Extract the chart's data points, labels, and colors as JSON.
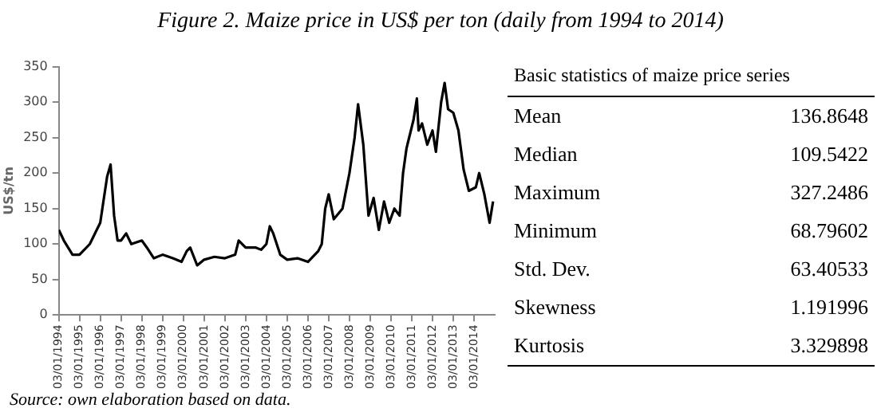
{
  "chart_data": [
    {
      "type": "line",
      "title": "Figure 2. Maize price in US$ per ton (daily from 1994 to 2014)",
      "ylabel": "US$/tn",
      "color": "#000000",
      "x": [
        "1994-01-03",
        "1994-04",
        "1994-09",
        "1995-01",
        "1995-07",
        "1996-01",
        "1996-05",
        "1996-07",
        "1996-09",
        "1996-11",
        "1997-01",
        "1997-04",
        "1997-07",
        "1998-01",
        "1998-04",
        "1998-08",
        "1999-01",
        "1999-07",
        "1999-12",
        "2000-03",
        "2000-05",
        "2000-09",
        "2001-01",
        "2001-07",
        "2002-01",
        "2002-07",
        "2002-09",
        "2003-01",
        "2003-07",
        "2003-10",
        "2004-01",
        "2004-03",
        "2004-05",
        "2004-09",
        "2005-01",
        "2005-07",
        "2006-01",
        "2006-07",
        "2006-09",
        "2006-11",
        "2007-01",
        "2007-04",
        "2007-09",
        "2008-01",
        "2008-04",
        "2008-06",
        "2008-09",
        "2008-12",
        "2009-03",
        "2009-06",
        "2009-09",
        "2009-12",
        "2010-03",
        "2010-06",
        "2010-08",
        "2010-10",
        "2011-02",
        "2011-04",
        "2011-05",
        "2011-07",
        "2011-10",
        "2012-01",
        "2012-03",
        "2012-06",
        "2012-08",
        "2012-10",
        "2013-01",
        "2013-04",
        "2013-07",
        "2013-10",
        "2014-02",
        "2014-04",
        "2014-07",
        "2014-10",
        "2014-12"
      ],
      "values": [
        120,
        105,
        85,
        85,
        100,
        130,
        195,
        212,
        140,
        105,
        105,
        115,
        100,
        105,
        95,
        80,
        85,
        80,
        75,
        90,
        95,
        70,
        78,
        82,
        80,
        85,
        105,
        95,
        95,
        92,
        100,
        125,
        115,
        85,
        78,
        80,
        75,
        90,
        100,
        150,
        170,
        135,
        150,
        200,
        250,
        297,
        240,
        140,
        165,
        120,
        160,
        130,
        150,
        140,
        200,
        235,
        275,
        305,
        260,
        270,
        240,
        260,
        230,
        300,
        327,
        290,
        285,
        260,
        205,
        175,
        180,
        200,
        170,
        130,
        160
      ],
      "xlim": [
        "1994-01-03",
        "2014-12-31"
      ],
      "xticks": [
        {
          "value": "1994-01-03",
          "label": "03/01/1994"
        },
        {
          "value": "1995-01-03",
          "label": "03/01/1995"
        },
        {
          "value": "1996-01-03",
          "label": "03/01/1996"
        },
        {
          "value": "1997-01-03",
          "label": "03/01/1997"
        },
        {
          "value": "1998-01-03",
          "label": "03/01/1998"
        },
        {
          "value": "1999-01-03",
          "label": "03/01/1999"
        },
        {
          "value": "2000-01-03",
          "label": "03/01/2000"
        },
        {
          "value": "2001-01-03",
          "label": "03/01/2001"
        },
        {
          "value": "2002-01-03",
          "label": "03/01/2002"
        },
        {
          "value": "2003-01-03",
          "label": "03/01/2003"
        },
        {
          "value": "2004-01-03",
          "label": "03/01/2004"
        },
        {
          "value": "2005-01-03",
          "label": "03/01/2005"
        },
        {
          "value": "2006-01-03",
          "label": "03/01/2006"
        },
        {
          "value": "2007-01-03",
          "label": "03/01/2007"
        },
        {
          "value": "2008-01-03",
          "label": "03/01/2008"
        },
        {
          "value": "2009-01-03",
          "label": "03/01/2009"
        },
        {
          "value": "2010-01-03",
          "label": "03/01/2010"
        },
        {
          "value": "2011-01-03",
          "label": "03/01/2011"
        },
        {
          "value": "2012-01-03",
          "label": "03/01/2012"
        },
        {
          "value": "2013-01-03",
          "label": "03/01/2013"
        },
        {
          "value": "2014-01-03",
          "label": "03/01/2014"
        }
      ],
      "ylim": [
        0,
        350
      ],
      "yticks": [
        0,
        50,
        100,
        150,
        200,
        250,
        300,
        350
      ],
      "grid": false,
      "legend": false,
      "marker": "none",
      "line_style": "solid",
      "annotations": [
        "Source: own elaboration based on data."
      ]
    },
    {
      "type": "other",
      "title": "Basic statistics of maize price series",
      "categories": [
        "Mean",
        "Median",
        "Maximum",
        "Minimum",
        "Std. Dev.",
        "Skewness",
        "Kurtosis"
      ],
      "values": [
        136.8648,
        109.5422,
        327.2486,
        68.79602,
        63.40533,
        1.191996,
        3.329898
      ],
      "data_labels": true
    }
  ]
}
